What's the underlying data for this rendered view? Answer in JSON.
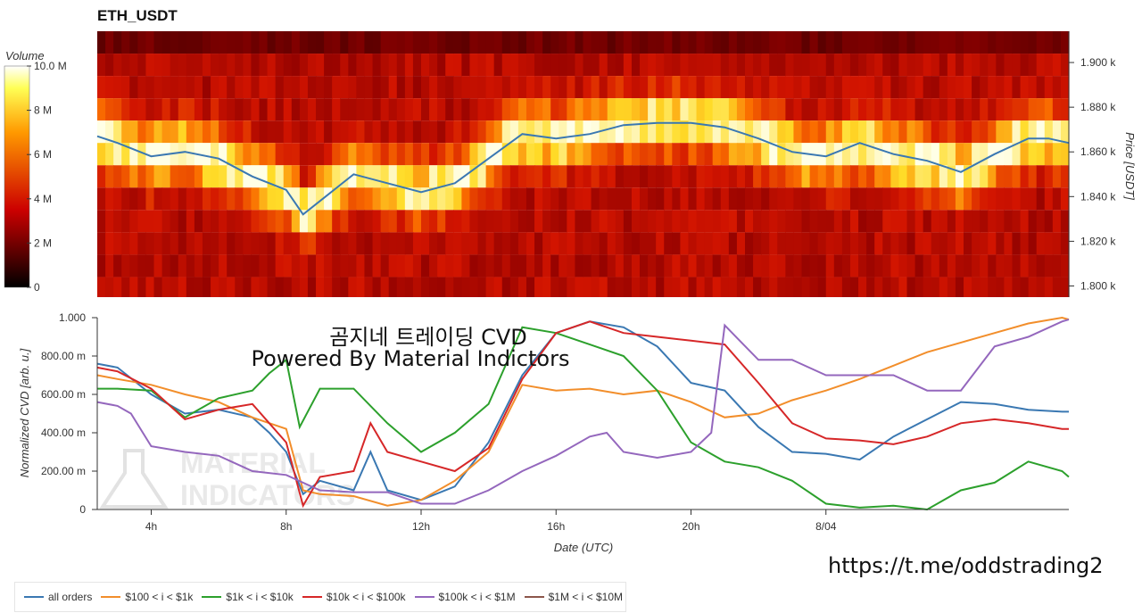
{
  "chart_data": [
    {
      "type": "heatmap",
      "title": "ETH_USDT",
      "colorbar_label": "Volume",
      "colorbar_ticks": [
        "10.0 M",
        "8 M",
        "6 M",
        "4 M",
        "2 M",
        "0"
      ],
      "colorbar_values": [
        10,
        8,
        6,
        4,
        2,
        0
      ],
      "ylabel": "Price [USDT]",
      "yticks": [
        "1.900 k",
        "1.880 k",
        "1.860 k",
        "1.840 k",
        "1.820 k",
        "1.800 k"
      ],
      "ytick_values": [
        1900,
        1880,
        1860,
        1840,
        1820,
        1800
      ],
      "ylim": [
        1795,
        1914
      ],
      "xlim": [
        2.4,
        31.2
      ],
      "price_band_width": 10,
      "price_line": {
        "color": "#3a78b2",
        "x": [
          2.4,
          3,
          4,
          5,
          6,
          7,
          8,
          8.5,
          9,
          10,
          11,
          12,
          13,
          14,
          15,
          16,
          17,
          18,
          19,
          20,
          21,
          22,
          23,
          24,
          25,
          26,
          27,
          28,
          29,
          30,
          30.6,
          31.2
        ],
        "y": [
          1867,
          1864,
          1858,
          1860,
          1857,
          1849,
          1843,
          1832,
          1838,
          1850,
          1846,
          1842,
          1846,
          1857,
          1868,
          1866,
          1868,
          1872,
          1873,
          1873,
          1871,
          1866,
          1860,
          1858,
          1864,
          1859,
          1856,
          1851,
          1859,
          1866,
          1866,
          1864
        ]
      }
    },
    {
      "type": "line",
      "ylabel": "Normalized CVD [arb. u.]",
      "xlabel": "Date (UTC)",
      "xticks": [
        "4h",
        "8h",
        "12h",
        "16h",
        "20h",
        "8/04"
      ],
      "xtick_values": [
        4,
        8,
        12,
        16,
        20,
        24
      ],
      "xlim": [
        2.4,
        31.2
      ],
      "yticks": [
        "1.000",
        "800.00 m",
        "600.00 m",
        "400.00 m",
        "200.00 m",
        "0"
      ],
      "ytick_values": [
        1.0,
        0.8,
        0.6,
        0.4,
        0.2,
        0
      ],
      "ylim": [
        0,
        1.0
      ],
      "series": [
        {
          "name": "all orders",
          "color": "#3a78b2",
          "x": [
            2.4,
            3,
            4,
            5,
            6,
            7,
            7.5,
            8,
            8.5,
            9,
            10,
            10.5,
            11,
            12,
            13,
            14,
            15,
            16,
            17,
            18,
            19,
            20,
            21,
            22,
            23,
            24,
            25,
            26,
            27,
            28,
            29,
            30,
            31,
            31.2
          ],
          "y": [
            0.76,
            0.74,
            0.6,
            0.5,
            0.52,
            0.48,
            0.4,
            0.3,
            0.08,
            0.15,
            0.1,
            0.3,
            0.1,
            0.05,
            0.12,
            0.35,
            0.7,
            0.92,
            0.98,
            0.95,
            0.85,
            0.66,
            0.62,
            0.43,
            0.3,
            0.29,
            0.26,
            0.38,
            0.47,
            0.56,
            0.55,
            0.52,
            0.51,
            0.51
          ]
        },
        {
          "name": "$100 < i < $1k",
          "color": "#f28e2b",
          "x": [
            2.4,
            3,
            4,
            5,
            6,
            7,
            8,
            8.5,
            9,
            10,
            11,
            12,
            13,
            14,
            15,
            16,
            17,
            18,
            19,
            20,
            21,
            22,
            23,
            24,
            25,
            26,
            27,
            28,
            29,
            30,
            31,
            31.2
          ],
          "y": [
            0.7,
            0.68,
            0.65,
            0.6,
            0.56,
            0.48,
            0.42,
            0.1,
            0.08,
            0.07,
            0.02,
            0.05,
            0.15,
            0.3,
            0.65,
            0.62,
            0.63,
            0.6,
            0.62,
            0.56,
            0.48,
            0.5,
            0.57,
            0.62,
            0.68,
            0.75,
            0.82,
            0.87,
            0.92,
            0.97,
            1.0,
            0.99
          ]
        },
        {
          "name": "$1k < i < $10k",
          "color": "#2ca02c",
          "x": [
            2.4,
            3,
            4,
            5,
            6,
            7,
            7.5,
            8,
            8.4,
            9,
            10,
            11,
            12,
            13,
            14,
            15,
            16,
            17,
            18,
            19,
            20,
            21,
            22,
            23,
            24,
            25,
            26,
            27,
            28,
            29,
            30,
            31,
            31.2
          ],
          "y": [
            0.63,
            0.63,
            0.62,
            0.48,
            0.58,
            0.62,
            0.71,
            0.78,
            0.43,
            0.63,
            0.63,
            0.45,
            0.3,
            0.4,
            0.55,
            0.95,
            0.92,
            0.86,
            0.8,
            0.62,
            0.35,
            0.25,
            0.22,
            0.15,
            0.03,
            0.01,
            0.02,
            0.0,
            0.1,
            0.14,
            0.25,
            0.2,
            0.17
          ]
        },
        {
          "name": "$10k < i < $100k",
          "color": "#d62728",
          "x": [
            2.4,
            3,
            4,
            5,
            6,
            7,
            8,
            8.5,
            9,
            10,
            10.5,
            11,
            12,
            13,
            14,
            15,
            16,
            17,
            18,
            19,
            20,
            21,
            22,
            23,
            24,
            25,
            26,
            27,
            28,
            29,
            30,
            31,
            31.2
          ],
          "y": [
            0.74,
            0.72,
            0.63,
            0.47,
            0.52,
            0.55,
            0.35,
            0.02,
            0.17,
            0.2,
            0.45,
            0.3,
            0.25,
            0.2,
            0.32,
            0.68,
            0.92,
            0.98,
            0.92,
            0.9,
            0.88,
            0.86,
            0.66,
            0.45,
            0.37,
            0.36,
            0.34,
            0.38,
            0.45,
            0.47,
            0.45,
            0.42,
            0.42
          ]
        },
        {
          "name": "$100k < i < $1M",
          "color": "#9467bd",
          "x": [
            2.4,
            3,
            3.4,
            4,
            5,
            6,
            7,
            8,
            9,
            10,
            11,
            12,
            13,
            14,
            15,
            16,
            17,
            17.5,
            18,
            19,
            20,
            20.6,
            21,
            22,
            23,
            24,
            25,
            26,
            27,
            28,
            29,
            30,
            31,
            31.2
          ],
          "y": [
            0.56,
            0.54,
            0.5,
            0.33,
            0.3,
            0.28,
            0.2,
            0.18,
            0.1,
            0.09,
            0.09,
            0.03,
            0.03,
            0.1,
            0.2,
            0.28,
            0.38,
            0.4,
            0.3,
            0.27,
            0.3,
            0.4,
            0.96,
            0.78,
            0.78,
            0.7,
            0.7,
            0.7,
            0.62,
            0.62,
            0.85,
            0.9,
            0.98,
            0.99
          ]
        },
        {
          "name": "$1M < i < $10M",
          "color": "#8c564b",
          "x": [],
          "y": []
        }
      ]
    }
  ],
  "overlay_title": "곰지네 트레이딩 CVD",
  "overlay_subtitle": "Powered By Material Indictors",
  "watermark_text": [
    "MATERIAL",
    "INDICATORS"
  ],
  "link_text": "https://t.me/oddstrading2"
}
